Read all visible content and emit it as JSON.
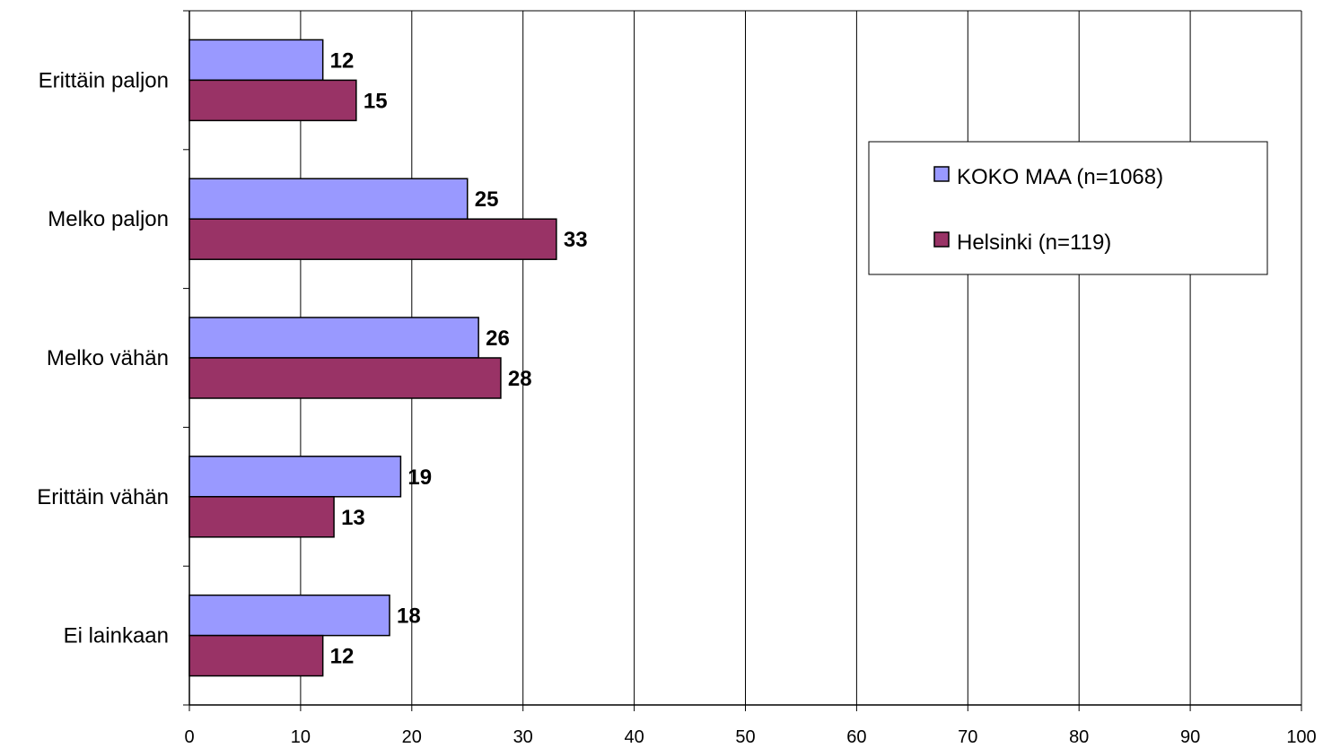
{
  "chart_data": {
    "type": "bar",
    "orientation": "horizontal",
    "title": "",
    "xlabel": "",
    "ylabel": "",
    "categories": [
      "Erittäin paljon",
      "Melko paljon",
      "Melko vähän",
      "Erittäin vähän",
      "Ei lainkaan"
    ],
    "series": [
      {
        "name": "KOKO MAA (n=1068)",
        "values": [
          12,
          25,
          26,
          19,
          18
        ],
        "color": "#9999ff"
      },
      {
        "name": "Helsinki (n=119)",
        "values": [
          15,
          33,
          28,
          13,
          12
        ],
        "color": "#993366"
      }
    ],
    "xlim": [
      0,
      100
    ],
    "xticks": [
      "0",
      "10",
      "20",
      "30",
      "40",
      "50",
      "60",
      "70",
      "80",
      "90",
      "100"
    ],
    "grid": "vertical",
    "legend": "right",
    "data_labels": true
  }
}
